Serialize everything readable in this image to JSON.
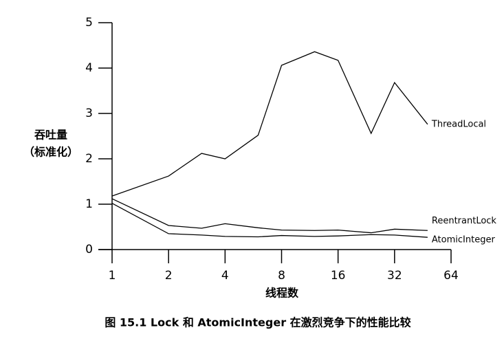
{
  "chart_data": {
    "type": "line",
    "ylabel": [
      "吞吐量",
      "（标准化）"
    ],
    "xlabel": "线程数",
    "caption": "图 15.1   Lock 和 AtomicInteger 在激烈竞争下的性能比较",
    "x": [
      1,
      2,
      3,
      4,
      6,
      8,
      12,
      16,
      24,
      32,
      48
    ],
    "x_log_base": 2,
    "xlim": [
      1,
      64
    ],
    "xticks": [
      1,
      2,
      4,
      8,
      16,
      32,
      64
    ],
    "ylim": [
      0,
      5
    ],
    "yticks": [
      0,
      1,
      2,
      3,
      4,
      5
    ],
    "series": [
      {
        "name": "ThreadLocal",
        "color": "#000000",
        "values": [
          1.18,
          1.62,
          2.12,
          2.0,
          2.52,
          4.06,
          4.36,
          4.17,
          2.56,
          3.68,
          2.76
        ]
      },
      {
        "name": "ReentrantLock",
        "color": "#000000",
        "values": [
          1.12,
          0.53,
          0.47,
          0.57,
          0.48,
          0.43,
          0.42,
          0.43,
          0.37,
          0.45,
          0.42
        ]
      },
      {
        "name": "AtomicInteger",
        "color": "#000000",
        "values": [
          1.02,
          0.35,
          0.32,
          0.29,
          0.28,
          0.31,
          0.29,
          0.3,
          0.33,
          0.32,
          0.27
        ]
      }
    ]
  }
}
